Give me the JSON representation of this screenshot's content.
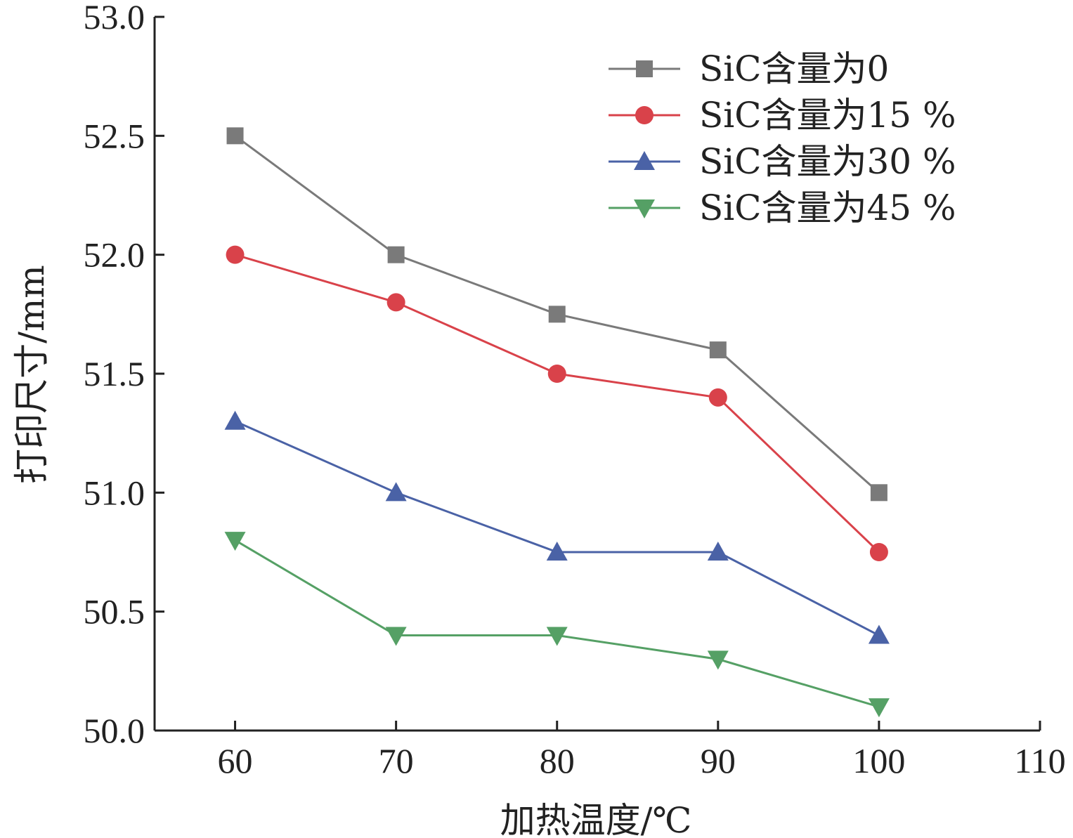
{
  "chart_data": {
    "type": "line",
    "xlabel": "加热温度/℃",
    "ylabel": "打印尺寸/mm",
    "xlim": [
      55,
      110
    ],
    "ylim": [
      50.0,
      53.0
    ],
    "xticks": [
      60,
      70,
      80,
      90,
      100,
      110
    ],
    "yticks": [
      50.0,
      50.5,
      51.0,
      51.5,
      52.0,
      52.5,
      53.0
    ],
    "xtick_labels": [
      "60",
      "70",
      "80",
      "90",
      "100",
      "110"
    ],
    "ytick_labels": [
      "50.0",
      "50.5",
      "51.0",
      "51.5",
      "52.0",
      "52.5",
      "53.0"
    ],
    "x": [
      60,
      70,
      80,
      90,
      100
    ],
    "grid": false,
    "legend_position": "top-right",
    "series": [
      {
        "name": "SiC含量为0",
        "values": [
          52.5,
          52.0,
          51.75,
          51.6,
          51.0
        ],
        "color": "#7a7a7a",
        "marker": "square"
      },
      {
        "name": "SiC含量为15 %",
        "values": [
          52.0,
          51.8,
          51.5,
          51.4,
          50.75
        ],
        "color": "#d9424a",
        "marker": "circle"
      },
      {
        "name": "SiC含量为30 %",
        "values": [
          51.3,
          51.0,
          50.75,
          50.75,
          50.4
        ],
        "color": "#4a62a6",
        "marker": "triangle-up"
      },
      {
        "name": "SiC含量为45 %",
        "values": [
          50.8,
          50.4,
          50.4,
          50.3,
          50.1
        ],
        "color": "#55a065",
        "marker": "triangle-down"
      }
    ]
  }
}
